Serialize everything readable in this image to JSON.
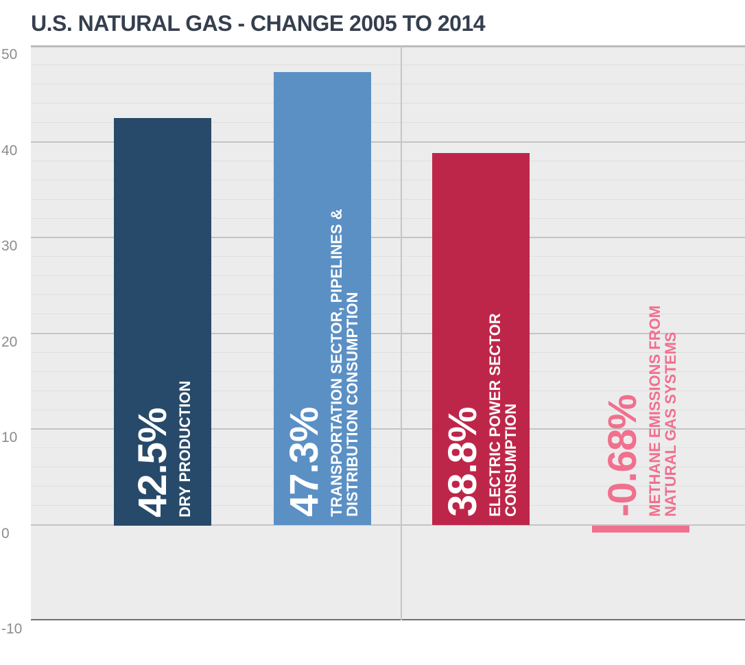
{
  "title": "U.S. NATURAL GAS - CHANGE 2005 TO 2014",
  "colors": {
    "title": "#363F4E",
    "plot_background": "#ECECEC",
    "navy": "#274A6A",
    "blue": "#5B90C5",
    "red": "#BE2649",
    "pink": "#F0708E"
  },
  "chart_data": {
    "type": "bar",
    "title": "U.S. NATURAL GAS - CHANGE 2005 TO 2014",
    "categories": [
      "DRY PRODUCTION",
      "TRANSPORTATION SECTOR, PIPELINES & DISTRIBUTION CONSUMPTION",
      "ELECTRIC POWER SECTOR CONSUMPTION",
      "METHANE EMISSIONS FROM NATURAL GAS SYSTEMS"
    ],
    "values": [
      42.5,
      47.3,
      38.8,
      -0.68
    ],
    "bars": [
      {
        "name": "dry-production",
        "value": 42.5,
        "value_label": "42.5%",
        "category_lines": [
          "DRY PRODUCTION"
        ],
        "color": "#274A6A",
        "label_color": "#FFFFFF",
        "label_position": "inside"
      },
      {
        "name": "transportation-pipelines-distribution-consumption",
        "value": 47.3,
        "value_label": "47.3%",
        "category_lines": [
          "TRANSPORTATION SECTOR, PIPELINES &",
          "DISTRIBUTION CONSUMPTION"
        ],
        "color": "#5B90C5",
        "label_color": "#FFFFFF",
        "label_position": "inside"
      },
      {
        "name": "electric-power-sector-consumption",
        "value": 38.8,
        "value_label": "38.8%",
        "category_lines": [
          "ELECTRIC POWER SECTOR",
          "CONSUMPTION"
        ],
        "color": "#BE2649",
        "label_color": "#FFFFFF",
        "label_position": "inside"
      },
      {
        "name": "methane-emissions-natural-gas-systems",
        "value": -0.68,
        "value_label": "-0.68%",
        "category_lines": [
          "METHANE EMISSIONS FROM",
          "NATURAL GAS SYSTEMS"
        ],
        "color": "#F0708E",
        "label_color": "#F0708E",
        "label_position": "above"
      }
    ],
    "xlabel": "",
    "ylabel": "",
    "ylim": [
      -10,
      50
    ],
    "yticks": [
      -10,
      0,
      10,
      20,
      30,
      40,
      50
    ],
    "minor_gridline_step": 2,
    "minor_gridline_range": [
      0,
      50
    ],
    "grid": true,
    "legend": false
  }
}
